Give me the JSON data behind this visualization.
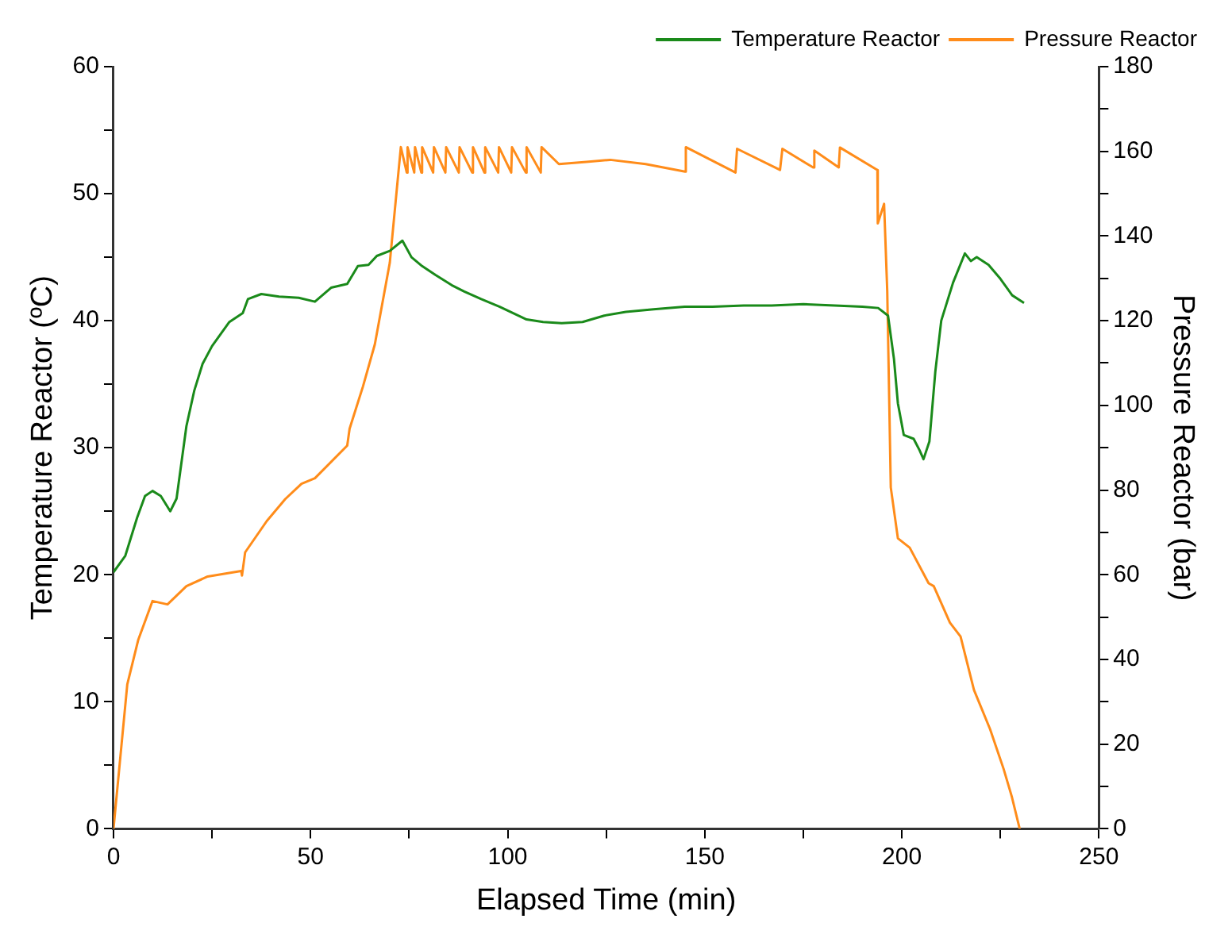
{
  "chart_data": {
    "type": "line",
    "xlabel": "Elapsed Time (min)",
    "ylabel": "Temperature Reactor (ºC)",
    "y2label": "Pressure Reactor (bar)",
    "legend": "top right",
    "grid": false,
    "xlim": [
      0,
      250
    ],
    "xticks": [
      0,
      {
        "value": 25,
        "label": null
      },
      50,
      {
        "value": 75,
        "label": null
      },
      100,
      {
        "value": 125,
        "label": null
      },
      150,
      {
        "value": 175,
        "label": null
      },
      200,
      {
        "value": 225,
        "label": null
      },
      250
    ],
    "ylim": [
      0,
      60
    ],
    "yticks": [
      0,
      {
        "value": 5,
        "label": null
      },
      10,
      {
        "value": 15,
        "label": null
      },
      20,
      {
        "value": 25,
        "label": null
      },
      30,
      {
        "value": 35,
        "label": null
      },
      40,
      {
        "value": 45,
        "label": null
      },
      50,
      {
        "value": 55,
        "label": null
      },
      60
    ],
    "y2lim": [
      0,
      180
    ],
    "y2ticks": [
      0,
      {
        "value": 10,
        "label": null
      },
      20,
      {
        "value": 30,
        "label": null
      },
      40,
      {
        "value": 50,
        "label": null
      },
      60,
      {
        "value": 70,
        "label": null
      },
      80,
      {
        "value": 90,
        "label": null
      },
      100,
      {
        "value": 110,
        "label": null
      },
      120,
      {
        "value": 130,
        "label": null
      },
      140,
      {
        "value": 150,
        "label": null
      },
      160,
      {
        "value": 170,
        "label": null
      },
      180
    ],
    "series": [
      {
        "name": "Temperature Reactor",
        "color": "#1a8a1a",
        "x": [
          0,
          3,
          6,
          8,
          9.9,
          12,
          14.4,
          16,
          18.5,
          20.5,
          22.6,
          25,
          29.4,
          32.8,
          34.1,
          37.5,
          42,
          47,
          51.1,
          55.2,
          59.3,
          62,
          64.7,
          66.8,
          70.1,
          73.3,
          75.6,
          78.3,
          81.7,
          85.8,
          89,
          93.3,
          98,
          104.8,
          109,
          113.7,
          119,
          124.5,
          130,
          137,
          144.9,
          152,
          159.9,
          167,
          175,
          183,
          190,
          194,
          196.5,
          198,
          199,
          200.5,
          203,
          204.5,
          205.5,
          207,
          208.5,
          210,
          213,
          216,
          217.5,
          219,
          222,
          225,
          228,
          231
        ],
        "values": [
          20.2,
          21.5,
          24.5,
          26.2,
          26.6,
          26.2,
          25,
          26,
          31.7,
          34.5,
          36.6,
          38,
          39.9,
          40.6,
          41.7,
          42.1,
          41.9,
          41.8,
          41.5,
          42.6,
          42.9,
          44.3,
          44.4,
          45.1,
          45.5,
          46.3,
          45,
          44.3,
          43.6,
          42.8,
          42.3,
          41.7,
          41.1,
          40.1,
          39.9,
          39.8,
          39.9,
          40.4,
          40.7,
          40.9,
          41.1,
          41.1,
          41.2,
          41.2,
          41.3,
          41.2,
          41.1,
          41,
          40.4,
          37,
          33.5,
          31,
          30.7,
          29.8,
          29.1,
          30.5,
          36,
          40,
          43,
          45.3,
          44.7,
          45,
          44.4,
          43.3,
          42,
          41.4
        ]
      },
      {
        "name": "Pressure Reactor",
        "color": "#ff8c1a",
        "axis": "y2",
        "x": [
          0,
          3.5,
          6.3,
          9.9,
          13.7,
          18.5,
          23.9,
          32.4,
          32.6,
          33.4,
          38.9,
          43.6,
          47.7,
          51.1,
          59.3,
          59.9,
          63.3,
          66.3,
          70.1,
          72.9,
          74.4,
          74.6,
          76.3,
          76.5,
          78.1,
          78.3,
          81.1,
          81.3,
          84.2,
          84.4,
          87.6,
          87.8,
          91,
          91.2,
          94.1,
          94.3,
          97.6,
          97.8,
          100.9,
          101.1,
          104.6,
          104.8,
          108.4,
          108.6,
          113,
          120,
          126,
          135,
          145,
          145.2,
          157.8,
          158.2,
          169.1,
          169.7,
          177.5,
          177.8,
          184,
          184.3,
          193.8,
          193.9,
          195.5,
          196.3,
          197.2,
          199,
          202,
          206.8,
          208.1,
          212.2,
          214.9,
          218.3,
          222.4,
          225.8,
          227.9,
          229.9
        ],
        "values": [
          0,
          34.1,
          44.7,
          53.8,
          53,
          57.3,
          59.6,
          60.9,
          59.8,
          65.3,
          72.7,
          77.9,
          81.5,
          82.8,
          90.5,
          94.5,
          104.5,
          114.4,
          133.7,
          161,
          155,
          161,
          155,
          161,
          155,
          161,
          155,
          161,
          155,
          161,
          155,
          161,
          155,
          161,
          155,
          161,
          155,
          161,
          155,
          161,
          155,
          161,
          155,
          161,
          157,
          157.5,
          158,
          157,
          155.2,
          161,
          155,
          160.6,
          155.6,
          160.6,
          156.2,
          160.2,
          156.2,
          160.9,
          155.6,
          143,
          147.6,
          127,
          80.6,
          68.6,
          66.4,
          58,
          57.3,
          48.7,
          45.4,
          32.8,
          23.5,
          14.2,
          7.6,
          0
        ]
      }
    ]
  }
}
